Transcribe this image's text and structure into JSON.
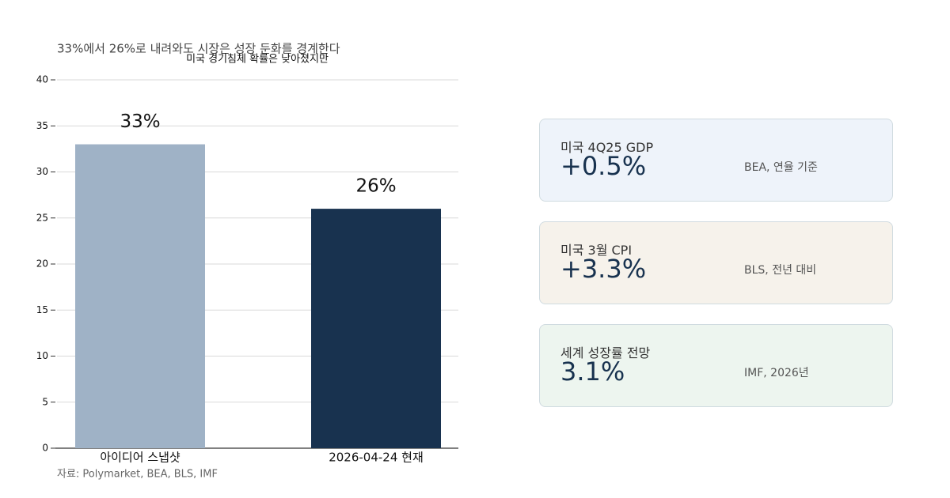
{
  "chart_data": {
    "type": "bar",
    "title": "미국 경기침체 확률은 낮아졌지만",
    "subtitle": "33%에서 26%로 내려와도 시장은 성장 둔화를 경계한다",
    "categories": [
      "아이디어 스냅샷",
      "2026-04-24 현재"
    ],
    "values": [
      33,
      26
    ],
    "value_labels": [
      "33%",
      "26%"
    ],
    "colors": [
      "#9fb2c6",
      "#18324f"
    ],
    "ylim": [
      0,
      40
    ],
    "yticks": [
      0,
      5,
      10,
      15,
      20,
      25,
      30,
      35,
      40
    ],
    "grid": true,
    "source": "자료: Polymarket, BEA, BLS, IMF"
  },
  "cards": [
    {
      "label": "미국 4Q25 GDP",
      "value": "+0.5%",
      "note": "BEA, 연율 기준"
    },
    {
      "label": "미국 3월 CPI",
      "value": "+3.3%",
      "note": "BLS, 전년 대비"
    },
    {
      "label": "세계 성장률 전망",
      "value": "3.1%",
      "note": "IMF, 2026년"
    }
  ]
}
